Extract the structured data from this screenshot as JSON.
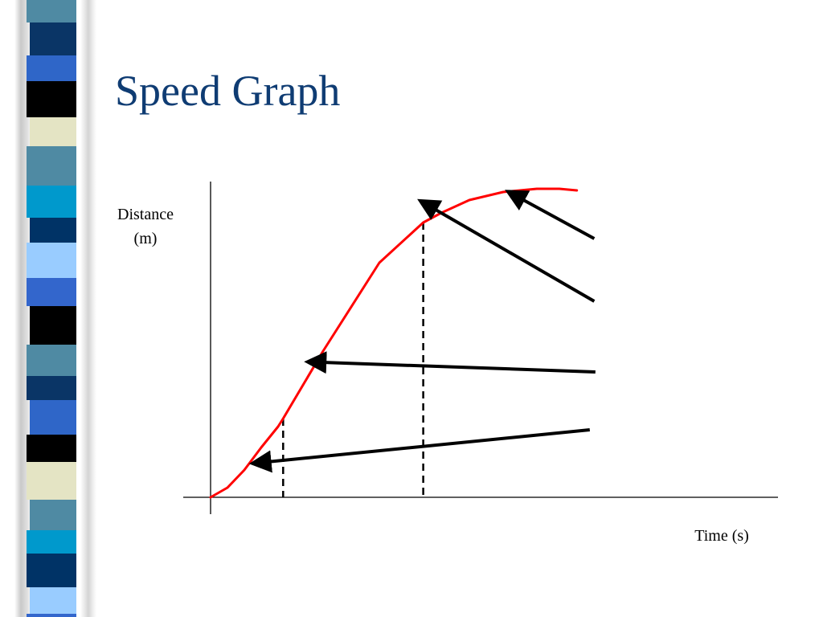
{
  "slide": {
    "title": "Speed Graph",
    "title_color": "#0f3c73",
    "strip_colors": [
      "#4f8aa3",
      "#0a3566",
      "#2f66c8",
      "#000000",
      "#e4e4c4",
      "#4f8aa3",
      "#0099cc",
      "#003366",
      "#99ccff",
      "#3366cc",
      "#000000"
    ]
  },
  "chart_data": {
    "type": "line",
    "title": "",
    "xlabel": "Time (s)",
    "ylabel": "Distance (m)",
    "grid": false,
    "legend": "none",
    "xlim": [
      0,
      10
    ],
    "ylim": [
      0,
      10
    ],
    "series": [
      {
        "color": "#ff0000",
        "x": [
          0,
          0.3,
          0.6,
          0.9,
          1.2,
          1.29,
          2.0,
          3.0,
          3.78,
          4.1,
          4.6,
          5.2,
          5.8,
          6.2,
          6.51
        ],
        "y": [
          0,
          0.3,
          0.85,
          1.55,
          2.2,
          2.45,
          4.55,
          7.3,
          8.55,
          8.85,
          9.25,
          9.5,
          9.6,
          9.6,
          9.55
        ]
      }
    ],
    "reference_lines": [
      {
        "x": 1.29,
        "style": "dashed",
        "color": "#000000"
      },
      {
        "x": 3.78,
        "style": "dashed",
        "color": "#000000"
      }
    ],
    "arrows": [
      {
        "from": [
          6.82,
          8.05
        ],
        "to": [
          5.51,
          9.3
        ],
        "color": "#000000"
      },
      {
        "from": [
          6.82,
          6.1
        ],
        "to": [
          3.95,
          9.0
        ],
        "color": "#000000"
      },
      {
        "from": [
          6.84,
          3.9
        ],
        "to": [
          1.98,
          4.2
        ],
        "color": "#000000"
      },
      {
        "from": [
          6.74,
          2.1
        ],
        "to": [
          1.0,
          1.1
        ],
        "color": "#000000"
      }
    ]
  }
}
